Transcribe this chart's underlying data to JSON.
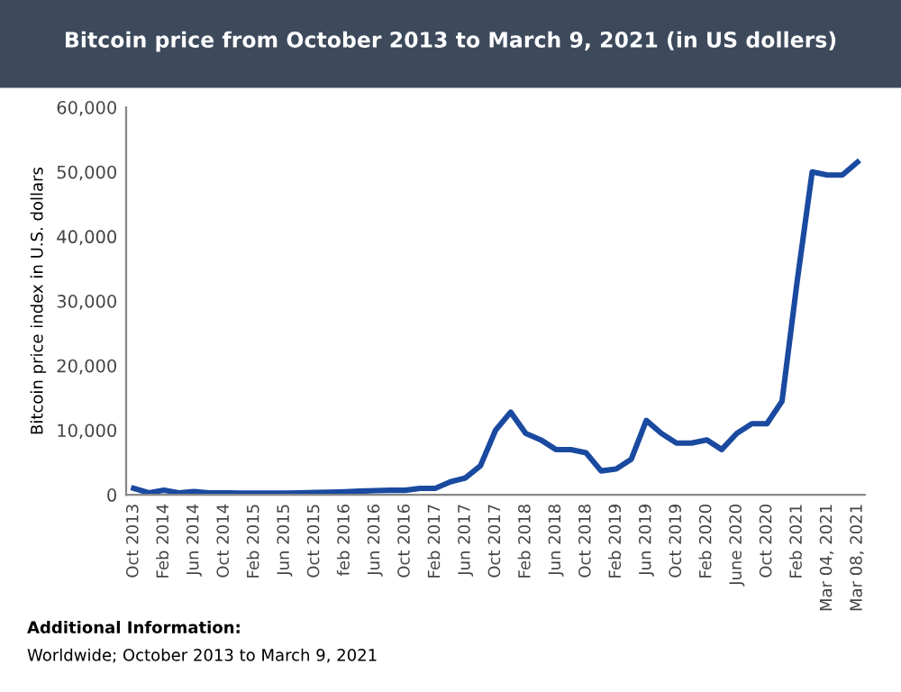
{
  "chart_data": {
    "type": "line",
    "title": "Bitcoin price from October 2013 to March 9, 2021 (in US dollers)",
    "ylabel": "Bitcoin price index in U.S. dollars",
    "categories": [
      "Oct 2013",
      null,
      "Feb 2014",
      null,
      "Jun 2014",
      null,
      "Oct 2014",
      null,
      "Feb 2015",
      null,
      "Jun 2015",
      null,
      "Oct 2015",
      null,
      "feb 2016",
      null,
      "Jun 2016",
      null,
      "Oct 2016",
      null,
      "Feb 2017",
      null,
      "Jun 2017",
      null,
      "Oct 2017",
      null,
      "Feb 2018",
      null,
      "Jun 2018",
      null,
      "Oct 2018",
      null,
      "Feb 2019",
      null,
      "Jun 2019",
      null,
      "Oct 2019",
      null,
      "Feb 2020",
      null,
      "June 2020",
      null,
      "Oct 2020",
      null,
      "Feb 2021",
      null,
      "Mar 04, 2021",
      null,
      "Mar 08, 2021"
    ],
    "series": [
      {
        "color": "#1a4aa0",
        "values": [
          1000,
          300,
          700,
          300,
          500,
          300,
          300,
          250,
          250,
          250,
          250,
          300,
          350,
          400,
          450,
          550,
          650,
          700,
          700,
          1000,
          1000,
          2000,
          2600,
          4500,
          10000,
          12800,
          9500,
          8500,
          7000,
          7000,
          6500,
          3700,
          4000,
          5500,
          11500,
          9500,
          8000,
          8000,
          8500,
          7000,
          9500,
          11000,
          11000,
          14500,
          33000,
          50000,
          49500,
          49500,
          51500
        ]
      }
    ],
    "ylim": [
      0,
      60000
    ],
    "yticks": [
      {
        "value": 0,
        "label": "0"
      },
      {
        "value": 10000,
        "label": "10,000"
      },
      {
        "value": 20000,
        "label": "20,000"
      },
      {
        "value": 30000,
        "label": "30,000"
      },
      {
        "value": 40000,
        "label": "40,000"
      },
      {
        "value": 50000,
        "label": "50,000"
      },
      {
        "value": 60000,
        "label": "60,000"
      }
    ],
    "grid": false,
    "legend": false,
    "marker": "none",
    "line_style": "solid",
    "annotations": [
      "Additional Information:",
      "Worldwide; October 2013 to March 9, 2021"
    ]
  }
}
